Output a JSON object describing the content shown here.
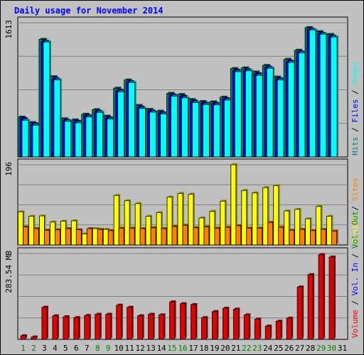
{
  "chart_data": {
    "type": "bar",
    "title": "Daily usage for November 2014",
    "days": [
      "1",
      "2",
      "3",
      "4",
      "5",
      "6",
      "7",
      "8",
      "9",
      "10",
      "11",
      "12",
      "13",
      "14",
      "15",
      "16",
      "17",
      "18",
      "19",
      "20",
      "21",
      "22",
      "23",
      "24",
      "25",
      "26",
      "27",
      "28",
      "29",
      "30",
      "31"
    ],
    "weekend_days": [
      "1",
      "2",
      "8",
      "9",
      "15",
      "16",
      "22",
      "23",
      "29",
      "30"
    ],
    "panels": [
      {
        "id": "top",
        "ymax": 1613,
        "ymax_label": "1613",
        "legend": [
          {
            "text": "Hits",
            "color": "#008080"
          },
          {
            "text": " / ",
            "color": "#000000"
          },
          {
            "text": "Files",
            "color": "#0000ff"
          },
          {
            "text": " / ",
            "color": "#000000"
          },
          {
            "text": "Pages",
            "color": "#00ffff"
          }
        ],
        "series": [
          {
            "name": "Hits",
            "color": "#00805a",
            "values": [
              478,
              413,
              1413,
              964,
              458,
              445,
              513,
              568,
              490,
              826,
              924,
              619,
              571,
              550,
              764,
              750,
              690,
              666,
              662,
              718,
              1062,
              1070,
              1020,
              1100,
              960,
              1173,
              1282,
              1555,
              1505,
              1472,
              null
            ]
          },
          {
            "name": "Files",
            "color": "#0000ff",
            "values": [
              460,
              398,
              1390,
              940,
              440,
              428,
              495,
              548,
              470,
              800,
              904,
              598,
              552,
              530,
              744,
              728,
              670,
              646,
              642,
              698,
              1040,
              1048,
              998,
              1078,
              940,
              1150,
              1262,
              1535,
              1485,
              1452,
              null
            ]
          },
          {
            "name": "Pages",
            "color": "#00ffff",
            "values": [
              440,
              380,
              1380,
              925,
              428,
              410,
              480,
              535,
              455,
              782,
              895,
              582,
              538,
              516,
              730,
              710,
              653,
              630,
              625,
              683,
              1025,
              1035,
              980,
              1065,
              925,
              1135,
              1250,
              1525,
              1475,
              1440,
              null
            ]
          }
        ]
      },
      {
        "id": "middle",
        "ymax": 196,
        "ymax_label": "196",
        "legend": [
          {
            "text": "Visits",
            "color": "#ffff00"
          },
          {
            "text": " / ",
            "color": "#000000"
          },
          {
            "text": "Sites",
            "color": "#ff8000"
          }
        ],
        "series": [
          {
            "name": "Visits",
            "color": "#ffff00",
            "values": [
              81,
              70,
              71,
              56,
              58,
              59,
              27,
              40,
              38,
              121,
              108,
              101,
              70,
              79,
              117,
              126,
              124,
              66,
              82,
              107,
              196,
              133,
              127,
              140,
              145,
              83,
              87,
              64,
              94,
              70,
              null
            ]
          },
          {
            "name": "Sites",
            "color": "#ff8000",
            "values": [
              44,
              40,
              36,
              37,
              40,
              37,
              40,
              38,
              35,
              41,
              41,
              40,
              42,
              40,
              45,
              48,
              42,
              44,
              41,
              43,
              47,
              41,
              41,
              55,
              43,
              36,
              38,
              35,
              38,
              34,
              null
            ]
          }
        ]
      },
      {
        "id": "bottom",
        "ymax": 283.54,
        "ymax_label": "283.54 MB",
        "legend": [
          {
            "text": "Volume",
            "color": "#ff0000"
          },
          {
            "text": " / ",
            "color": "#000000"
          },
          {
            "text": "Vol. In",
            "color": "#0000ff"
          },
          {
            "text": " / ",
            "color": "#000000"
          },
          {
            "text": "Vol. Out",
            "color": "#008000"
          }
        ],
        "series": [
          {
            "name": "Volume",
            "color": "#e00000",
            "values": [
              12,
              8,
              106,
              78,
              75,
              72,
              79,
              83,
              83,
              113,
              106,
              78,
              83,
              81,
              124,
              118,
              115,
              72,
              92,
              103,
              100,
              81,
              67,
              44,
              60,
              70,
              173,
              214,
              280,
              272,
              null
            ]
          }
        ]
      }
    ]
  }
}
